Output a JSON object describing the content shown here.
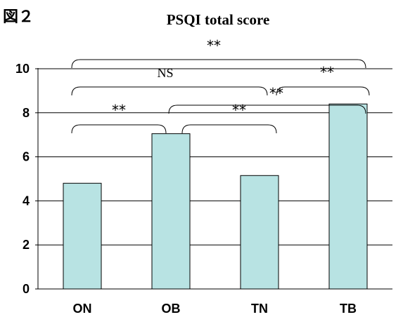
{
  "figure_label": "図２",
  "chart_data": {
    "type": "bar",
    "title": "PSQI total score",
    "xlabel": "",
    "ylabel": "",
    "categories": [
      "ON",
      "OB",
      "TN",
      "TB"
    ],
    "values": [
      4.8,
      7.05,
      5.15,
      8.4
    ],
    "ylim": [
      0,
      10
    ],
    "yticks": [
      0,
      2,
      4,
      6,
      8,
      10
    ],
    "grid": true,
    "legend": "none",
    "bar_color": "#b8e3e3",
    "significance": [
      {
        "from": "ON",
        "to": "OB",
        "label": "**"
      },
      {
        "from": "OB",
        "to": "TN",
        "label": "**"
      },
      {
        "from": "ON",
        "to": "TN",
        "label": "NS"
      },
      {
        "from": "OB",
        "to": "TB",
        "label": "**"
      },
      {
        "from": "TN",
        "to": "TB",
        "label": "**"
      },
      {
        "from": "ON",
        "to": "TB",
        "label": "**"
      }
    ]
  }
}
